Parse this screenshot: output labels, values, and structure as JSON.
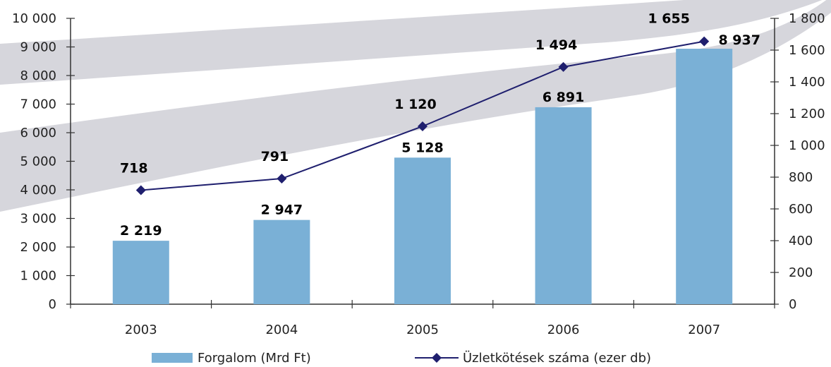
{
  "chart_data": {
    "type": "bar+line",
    "categories": [
      "2003",
      "2004",
      "2005",
      "2006",
      "2007"
    ],
    "bar_series": {
      "name": "Forgalom (Mrd Ft)",
      "values": [
        2219,
        2947,
        5128,
        6891,
        8937
      ],
      "labels": [
        "2 219",
        "2 947",
        "5 128",
        "6 891",
        "8 937"
      ],
      "color": "#7ab0d6"
    },
    "line_series": {
      "name": "Üzletkötések száma (ezer db)",
      "values": [
        718,
        791,
        1120,
        1494,
        1655
      ],
      "labels": [
        "718",
        "791",
        "1 120",
        "1 494",
        "1 655"
      ],
      "color": "#1f1f6e"
    },
    "y_left": {
      "min": 0,
      "max": 10000,
      "ticks": [
        0,
        1000,
        2000,
        3000,
        4000,
        5000,
        6000,
        7000,
        8000,
        9000,
        10000
      ],
      "tick_labels": [
        "0",
        "1 000",
        "2 000",
        "3 000",
        "4 000",
        "5 000",
        "6 000",
        "7 000",
        "8 000",
        "9 000",
        "10 000"
      ]
    },
    "y_right": {
      "min": 0,
      "max": 1800,
      "ticks": [
        0,
        200,
        400,
        600,
        800,
        1000,
        1200,
        1400,
        1600,
        1800
      ],
      "tick_labels": [
        "0",
        "200",
        "400",
        "600",
        "800",
        "1 000",
        "1 200",
        "1 400",
        "1 600",
        "1 800"
      ]
    },
    "grid": false,
    "legend_position": "bottom",
    "background_band_color": "#d6d6dc"
  }
}
